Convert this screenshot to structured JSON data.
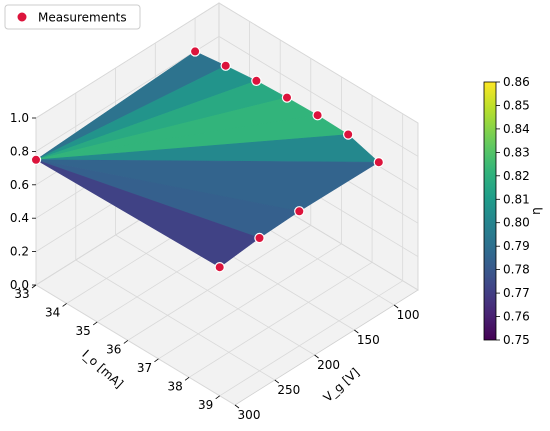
{
  "chart_data": {
    "type": "surface3d",
    "title": "",
    "xlabel": "V_g [V]",
    "ylabel": "I_o [mA]",
    "zlabel": "",
    "colorbar_label": "η",
    "colormap": "viridis",
    "legend": {
      "label": "Measurements",
      "placement": "top-left",
      "marker_color": "#dc143c"
    },
    "x_ticks": [
      100,
      150,
      200,
      250,
      300
    ],
    "y_ticks": [
      33,
      34,
      35,
      36,
      37,
      38,
      39
    ],
    "z_ticks": [
      "0.0",
      "0.2",
      "0.4",
      "0.6",
      "0.8",
      "1.0"
    ],
    "colorbar_ticks": [
      "0.75",
      "0.76",
      "0.77",
      "0.78",
      "0.79",
      "0.80",
      "0.81",
      "0.82",
      "0.83",
      "0.84",
      "0.85",
      "0.86"
    ],
    "colorbar_range": [
      0.75,
      0.86
    ],
    "xlim": [
      70,
      300
    ],
    "ylim": [
      33,
      39.5
    ],
    "zlim": [
      0,
      1
    ],
    "points": [
      {
        "x": 100,
        "y": 33,
        "z": 0.8
      },
      {
        "x": 100,
        "y": 34,
        "z": 0.825
      },
      {
        "x": 100,
        "y": 35,
        "z": 0.845
      },
      {
        "x": 100,
        "y": 36,
        "z": 0.855
      },
      {
        "x": 100,
        "y": 37,
        "z": 0.86
      },
      {
        "x": 100,
        "y": 38,
        "z": 0.855
      },
      {
        "x": 100,
        "y": 39,
        "z": 0.8
      },
      {
        "x": 200,
        "y": 39,
        "z": 0.805
      },
      {
        "x": 250,
        "y": 39,
        "z": 0.795
      },
      {
        "x": 300,
        "y": 39,
        "z": 0.77
      },
      {
        "x": 300,
        "y": 33,
        "z": 0.75
      }
    ]
  }
}
